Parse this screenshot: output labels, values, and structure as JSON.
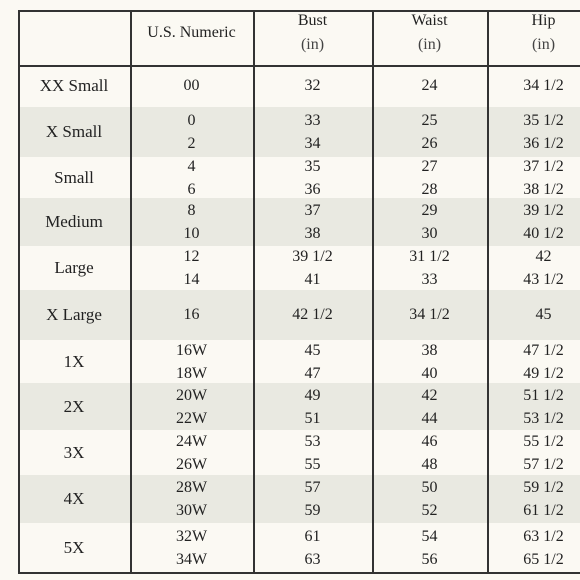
{
  "table": {
    "header": [
      {
        "label": "U.S. Numeric"
      },
      {
        "label": "Bust",
        "unit": "(in)"
      },
      {
        "label": "Waist",
        "unit": "(in)"
      },
      {
        "label": "Hip",
        "unit": "(in)"
      }
    ],
    "rows": [
      {
        "size": "XX Small",
        "numeric": [
          "00"
        ],
        "bust": [
          "32"
        ],
        "waist": [
          "24"
        ],
        "hip": [
          "34 1/2"
        ]
      },
      {
        "size": "X Small",
        "numeric": [
          "0",
          "2"
        ],
        "bust": [
          "33",
          "34"
        ],
        "waist": [
          "25",
          "26"
        ],
        "hip": [
          "35 1/2",
          "36 1/2"
        ]
      },
      {
        "size": "Small",
        "numeric": [
          "4",
          "6"
        ],
        "bust": [
          "35",
          "36"
        ],
        "waist": [
          "27",
          "28"
        ],
        "hip": [
          "37 1/2",
          "38 1/2"
        ]
      },
      {
        "size": "Medium",
        "numeric": [
          "8",
          "10"
        ],
        "bust": [
          "37",
          "38"
        ],
        "waist": [
          "29",
          "30"
        ],
        "hip": [
          "39 1/2",
          "40 1/2"
        ]
      },
      {
        "size": "Large",
        "numeric": [
          "12",
          "14"
        ],
        "bust": [
          "39 1/2",
          "41"
        ],
        "waist": [
          "31 1/2",
          "33"
        ],
        "hip": [
          "42",
          "43 1/2"
        ]
      },
      {
        "size": "X Large",
        "numeric": [
          "16"
        ],
        "bust": [
          "42 1/2"
        ],
        "waist": [
          "34 1/2"
        ],
        "hip": [
          "45"
        ]
      },
      {
        "size": "1X",
        "numeric": [
          "16W",
          "18W"
        ],
        "bust": [
          "45",
          "47"
        ],
        "waist": [
          "38",
          "40"
        ],
        "hip": [
          "47 1/2",
          "49 1/2"
        ]
      },
      {
        "size": "2X",
        "numeric": [
          "20W",
          "22W"
        ],
        "bust": [
          "49",
          "51"
        ],
        "waist": [
          "42",
          "44"
        ],
        "hip": [
          "51 1/2",
          "53 1/2"
        ]
      },
      {
        "size": "3X",
        "numeric": [
          "24W",
          "26W"
        ],
        "bust": [
          "53",
          "55"
        ],
        "waist": [
          "46",
          "48"
        ],
        "hip": [
          "55 1/2",
          "57 1/2"
        ]
      },
      {
        "size": "4X",
        "numeric": [
          "28W",
          "30W"
        ],
        "bust": [
          "57",
          "59"
        ],
        "waist": [
          "50",
          "52"
        ],
        "hip": [
          "59 1/2",
          "61 1/2"
        ]
      },
      {
        "size": "5X",
        "numeric": [
          "32W",
          "34W"
        ],
        "bust": [
          "61",
          "63"
        ],
        "waist": [
          "54",
          "56"
        ],
        "hip": [
          "63 1/2",
          "65 1/2"
        ]
      }
    ]
  }
}
